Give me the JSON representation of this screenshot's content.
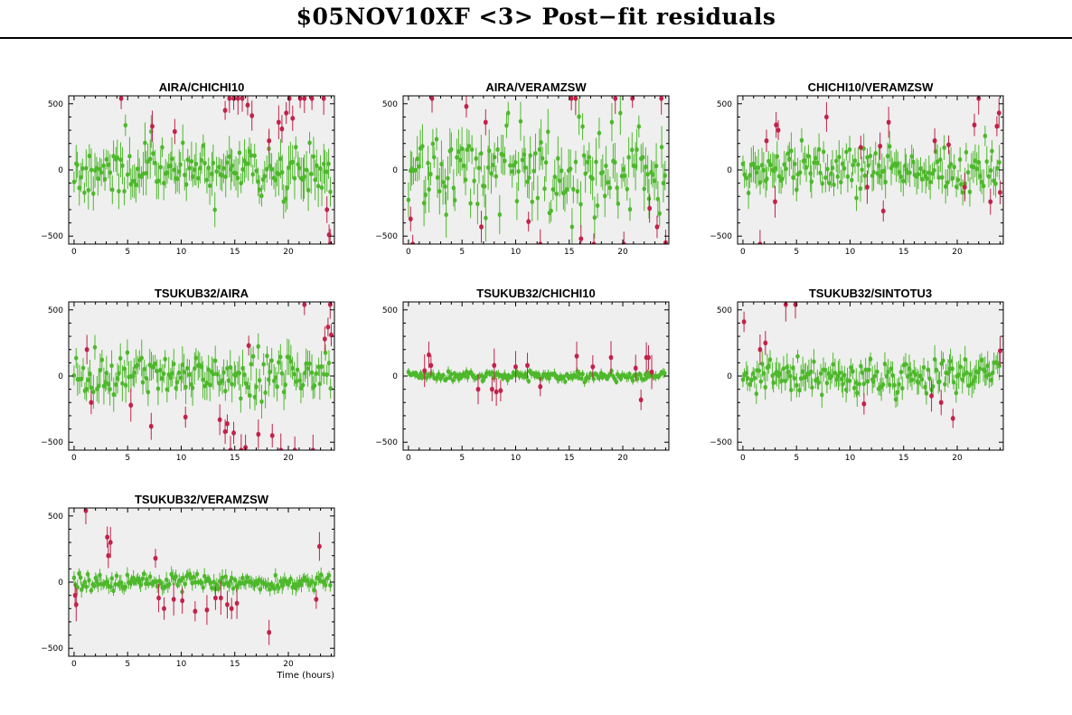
{
  "title": "$05NOV10XF <3> Post−fit residuals",
  "colors": {
    "background": "#ffffff",
    "plot_bg": "#efefef",
    "good": "#4db82b",
    "flagged": "#c2224a",
    "axis": "#000000"
  },
  "chart_data": [
    {
      "type": "scatter",
      "title": "AIRA/CHICHI10",
      "xlabel": "",
      "xticks": [
        0,
        5,
        10,
        15,
        20
      ],
      "yticks": [
        -500,
        0,
        500
      ],
      "xlim": [
        -0.5,
        24.3
      ],
      "ylim": [
        -560,
        560
      ],
      "seed": 11,
      "noise": 95,
      "err": 120,
      "n_good": 150,
      "series": [
        {
          "label": "flagged",
          "points": [
            [
              4.4,
              540
            ],
            [
              7.3,
              330
            ],
            [
              9.4,
              290
            ],
            [
              14.1,
              450
            ],
            [
              14.5,
              540
            ],
            [
              14.9,
              540
            ],
            [
              15.3,
              540
            ],
            [
              15.7,
              540
            ],
            [
              16.2,
              490
            ],
            [
              16.6,
              410
            ],
            [
              18.2,
              220
            ],
            [
              19.1,
              360
            ],
            [
              19.4,
              310
            ],
            [
              19.8,
              430
            ],
            [
              20.1,
              540
            ],
            [
              20.4,
              390
            ],
            [
              21.1,
              540
            ],
            [
              21.5,
              540
            ],
            [
              22.2,
              540
            ],
            [
              23.3,
              540
            ],
            [
              23.6,
              -300
            ],
            [
              23.8,
              -490
            ],
            [
              23.9,
              -560
            ]
          ]
        }
      ]
    },
    {
      "type": "scatter",
      "title": "AIRA/VERAMZSW",
      "xlabel": "",
      "xticks": [
        0,
        5,
        10,
        15,
        20
      ],
      "yticks": [
        -500,
        0,
        500
      ],
      "xlim": [
        -0.5,
        24.3
      ],
      "ylim": [
        -560,
        560
      ],
      "seed": 23,
      "noise": 175,
      "err": 130,
      "n_good": 150,
      "series": [
        {
          "label": "flagged",
          "points": [
            [
              0.2,
              -370
            ],
            [
              0.4,
              -560
            ],
            [
              2.2,
              540
            ],
            [
              5.4,
              480
            ],
            [
              6.8,
              -430
            ],
            [
              7.2,
              360
            ],
            [
              11.2,
              -390
            ],
            [
              12.3,
              -560
            ],
            [
              15.2,
              540
            ],
            [
              15.6,
              540
            ],
            [
              16.1,
              -520
            ],
            [
              17.3,
              -560
            ],
            [
              19.3,
              540
            ],
            [
              20.1,
              -560
            ],
            [
              20.9,
              540
            ],
            [
              22.5,
              -290
            ],
            [
              23.2,
              -430
            ],
            [
              23.6,
              540
            ],
            [
              24.0,
              -550
            ]
          ]
        }
      ]
    },
    {
      "type": "scatter",
      "title": "CHICHI10/VERAMZSW",
      "xlabel": "",
      "xticks": [
        0,
        5,
        10,
        15,
        20
      ],
      "yticks": [
        -500,
        0,
        500
      ],
      "xlim": [
        -0.5,
        24.3
      ],
      "ylim": [
        -560,
        560
      ],
      "seed": 37,
      "noise": 85,
      "err": 100,
      "n_good": 150,
      "series": [
        {
          "label": "flagged",
          "points": [
            [
              1.6,
              -560
            ],
            [
              2.2,
              220
            ],
            [
              3.0,
              -240
            ],
            [
              3.1,
              340
            ],
            [
              3.3,
              300
            ],
            [
              7.8,
              400
            ],
            [
              11.0,
              170
            ],
            [
              11.6,
              -130
            ],
            [
              12.8,
              180
            ],
            [
              13.1,
              -310
            ],
            [
              13.6,
              360
            ],
            [
              17.9,
              220
            ],
            [
              19.2,
              190
            ],
            [
              20.7,
              -130
            ],
            [
              21.6,
              340
            ],
            [
              22.0,
              540
            ],
            [
              23.1,
              -240
            ],
            [
              23.7,
              330
            ],
            [
              23.9,
              430
            ],
            [
              24.0,
              -170
            ]
          ]
        }
      ]
    },
    {
      "type": "scatter",
      "title": "TSUKUB32/AIRA",
      "xlabel": "",
      "xticks": [
        0,
        5,
        10,
        15,
        20
      ],
      "yticks": [
        -500,
        0,
        500
      ],
      "xlim": [
        -0.5,
        24.3
      ],
      "ylim": [
        -560,
        560
      ],
      "seed": 41,
      "noise": 85,
      "err": 100,
      "n_good": 150,
      "series": [
        {
          "label": "flagged",
          "points": [
            [
              1.2,
              200
            ],
            [
              1.6,
              -200
            ],
            [
              5.3,
              -220
            ],
            [
              7.2,
              -380
            ],
            [
              10.4,
              -310
            ],
            [
              13.6,
              -330
            ],
            [
              14.1,
              -420
            ],
            [
              14.3,
              -360
            ],
            [
              14.6,
              -560
            ],
            [
              14.9,
              -430
            ],
            [
              15.6,
              -560
            ],
            [
              16.0,
              -540
            ],
            [
              16.3,
              230
            ],
            [
              17.2,
              -440
            ],
            [
              18.5,
              -450
            ],
            [
              19.3,
              -560
            ],
            [
              20.6,
              -560
            ],
            [
              21.5,
              540
            ],
            [
              22.3,
              -560
            ],
            [
              23.4,
              280
            ],
            [
              23.7,
              370
            ],
            [
              23.9,
              540
            ],
            [
              24.0,
              310
            ]
          ]
        }
      ]
    },
    {
      "type": "scatter",
      "title": "TSUKUB32/CHICHI10",
      "xlabel": "",
      "xticks": [
        0,
        5,
        10,
        15,
        20
      ],
      "yticks": [
        -500,
        0,
        500
      ],
      "xlim": [
        -0.5,
        24.3
      ],
      "ylim": [
        -560,
        560
      ],
      "seed": 53,
      "noise": 18,
      "err": 28,
      "n_good": 170,
      "series": [
        {
          "label": "flagged",
          "points": [
            [
              1.5,
              40
            ],
            [
              1.9,
              160
            ],
            [
              2.1,
              80
            ],
            [
              6.5,
              -100
            ],
            [
              7.8,
              -100
            ],
            [
              8.0,
              80
            ],
            [
              8.2,
              -120
            ],
            [
              8.6,
              -110
            ],
            [
              10.0,
              70
            ],
            [
              11.1,
              80
            ],
            [
              12.3,
              -80
            ],
            [
              15.7,
              150
            ],
            [
              17.2,
              70
            ],
            [
              18.9,
              140
            ],
            [
              21.2,
              60
            ],
            [
              21.7,
              -180
            ],
            [
              22.2,
              140
            ],
            [
              22.4,
              140
            ],
            [
              22.7,
              30
            ]
          ]
        }
      ]
    },
    {
      "type": "scatter",
      "title": "TSUKUB32/SINTOTU3",
      "xlabel": "",
      "xticks": [
        0,
        5,
        10,
        15,
        20
      ],
      "yticks": [
        -500,
        0,
        500
      ],
      "xlim": [
        -0.5,
        24.3
      ],
      "ylim": [
        -560,
        560
      ],
      "seed": 67,
      "noise": 55,
      "err": 80,
      "n_good": 160,
      "series": [
        {
          "label": "flagged",
          "points": [
            [
              0.1,
              410
            ],
            [
              1.6,
              200
            ],
            [
              2.1,
              250
            ],
            [
              4.0,
              540
            ],
            [
              4.9,
              540
            ],
            [
              11.3,
              -210
            ],
            [
              17.6,
              -150
            ],
            [
              18.5,
              -200
            ],
            [
              19.6,
              -320
            ],
            [
              24.0,
              190
            ]
          ]
        }
      ]
    },
    {
      "type": "scatter",
      "title": "TSUKUB32/VERAMZSW",
      "xlabel": "Time (hours)",
      "xticks": [
        0,
        5,
        10,
        15,
        20
      ],
      "yticks": [
        -500,
        0,
        500
      ],
      "xlim": [
        -0.5,
        24.3
      ],
      "ylim": [
        -560,
        560
      ],
      "seed": 79,
      "noise": 30,
      "err": 45,
      "n_good": 170,
      "series": [
        {
          "label": "flagged",
          "points": [
            [
              0.1,
              -100
            ],
            [
              0.2,
              -170
            ],
            [
              1.1,
              540
            ],
            [
              3.1,
              340
            ],
            [
              3.4,
              300
            ],
            [
              3.2,
              200
            ],
            [
              7.6,
              180
            ],
            [
              7.9,
              -120
            ],
            [
              8.4,
              -200
            ],
            [
              9.3,
              -130
            ],
            [
              10.1,
              -140
            ],
            [
              11.3,
              -220
            ],
            [
              12.4,
              -210
            ],
            [
              13.2,
              -120
            ],
            [
              13.7,
              -120
            ],
            [
              14.3,
              -170
            ],
            [
              14.7,
              -200
            ],
            [
              15.2,
              -160
            ],
            [
              18.2,
              -380
            ],
            [
              22.6,
              -130
            ],
            [
              22.9,
              270
            ]
          ]
        }
      ]
    }
  ]
}
